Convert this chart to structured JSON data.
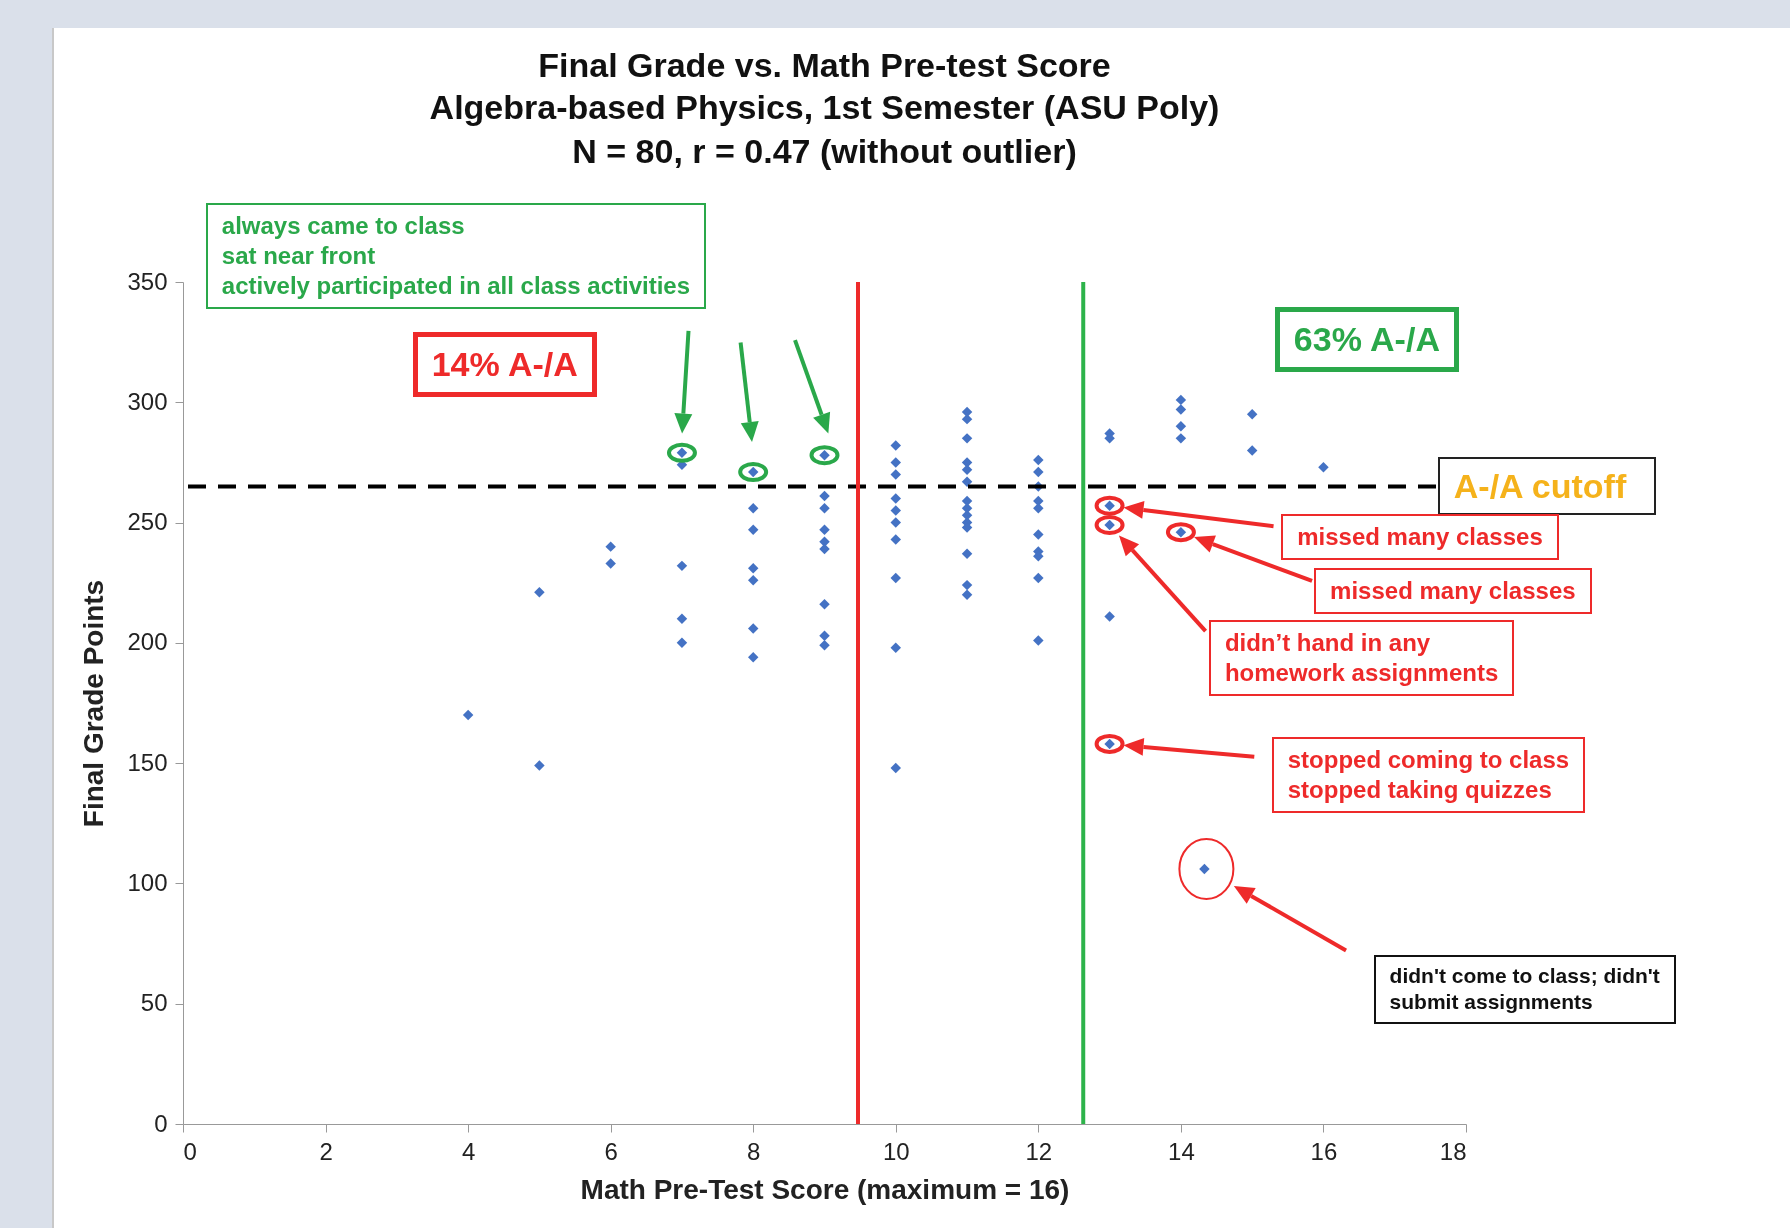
{
  "chart_data": {
    "type": "scatter",
    "title": "Final Grade vs. Math Pre-test Score",
    "subtitle": "Algebra-based Physics, 1st Semester (ASU Poly)\nN = 80, r = 0.47 (without outlier)",
    "xlabel": "Math Pre-Test Score (maximum = 16)",
    "ylabel": "Final Grade Points",
    "series": [
      {
        "color": "#4472c4",
        "x": [
          4,
          5,
          5,
          6,
          6,
          7,
          7,
          7,
          7,
          7,
          8,
          8,
          8,
          8,
          8,
          8,
          8,
          9,
          9,
          9,
          9,
          9,
          9,
          9,
          9,
          9,
          10,
          10,
          10,
          10,
          10,
          10,
          10,
          10,
          10,
          10,
          11,
          11,
          11,
          11,
          11,
          11,
          11,
          11,
          11,
          11,
          11,
          11,
          11,
          11,
          12,
          12,
          12,
          12,
          12,
          12,
          12,
          12,
          12,
          12,
          13,
          13,
          13,
          13,
          13,
          13,
          14,
          14,
          14,
          14,
          14,
          15,
          15,
          16,
          14.33
        ],
        "values": [
          170,
          221,
          149,
          240,
          233,
          279,
          274,
          232,
          210,
          200,
          271,
          256,
          247,
          231,
          226,
          206,
          194,
          278,
          261,
          256,
          247,
          242,
          239,
          216,
          203,
          199,
          282,
          275,
          270,
          260,
          255,
          250,
          243,
          227,
          198,
          148,
          296,
          293,
          285,
          275,
          272,
          267,
          259,
          256,
          253,
          250,
          248,
          237,
          224,
          220,
          276,
          271,
          265,
          259,
          256,
          245,
          238,
          236,
          227,
          201,
          287,
          285,
          257,
          249,
          211,
          158,
          301,
          297,
          290,
          285,
          246,
          295,
          280,
          273,
          106
        ]
      }
    ],
    "xlim": [
      0,
      18
    ],
    "xticks": [
      0,
      2,
      4,
      6,
      8,
      10,
      12,
      14,
      16,
      18
    ],
    "ylim": [
      0,
      350
    ],
    "yticks": [
      0,
      50,
      100,
      150,
      200,
      250,
      300,
      350
    ],
    "grid": false,
    "marker": "diamond",
    "ref_lines": [
      {
        "axis": "y",
        "value": 265,
        "label": "A-/A cutoff",
        "line_style": "dashed",
        "color": "#000000"
      },
      {
        "axis": "x",
        "value": 9.47,
        "color": "#ee2a2a"
      },
      {
        "axis": "x",
        "value": 12.63,
        "color": "#2db34a"
      }
    ],
    "annotations": [
      "always came to class\nsat near front\nactively participated in all class activities",
      "14% A-/A",
      "63% A-/A",
      "missed many classes",
      "missed many classes",
      "didn’t hand in any\nhomework assignments",
      "stopped coming to class\nstopped taking quizzes",
      "didn't come to class; didn't\nsubmit assignments"
    ]
  }
}
